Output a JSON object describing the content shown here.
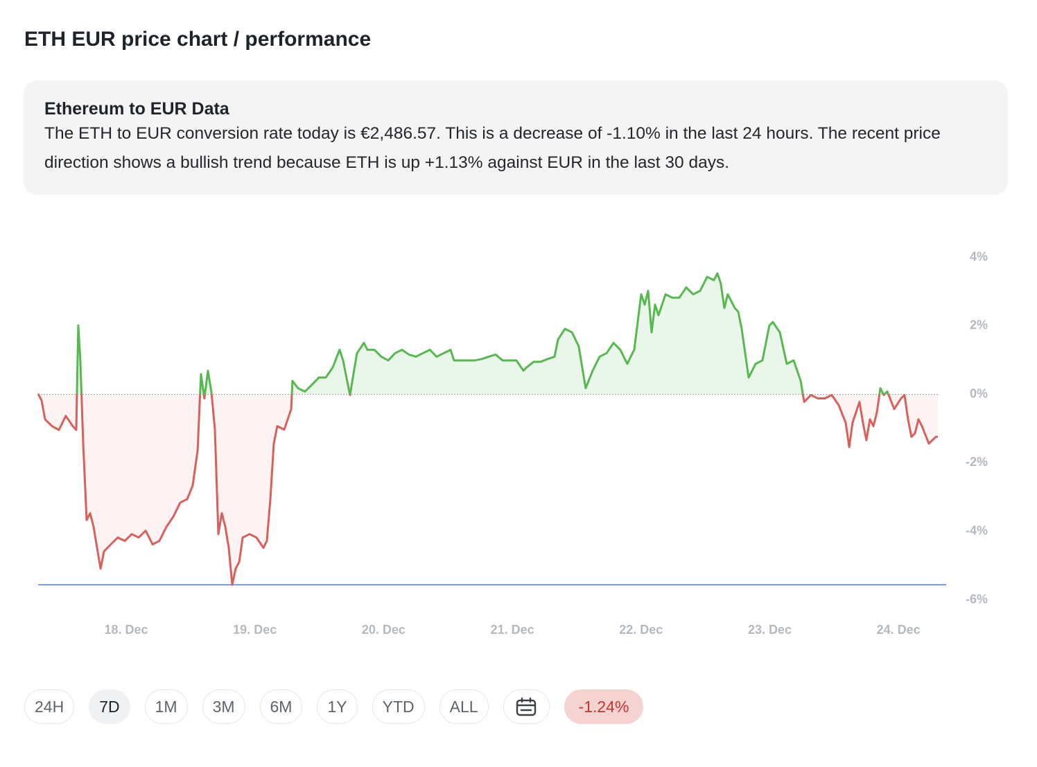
{
  "header": {
    "title": "ETH EUR price chart / performance"
  },
  "info": {
    "heading": "Ethereum to EUR Data",
    "text": "The ETH to EUR conversion rate today is €2,486.57. This is a decrease of -1.10% in the last 24 hours. The recent price direction shows a bullish trend because ETH is up +1.13% against EUR in the last 30 days."
  },
  "chart_data": {
    "type": "line",
    "x": [
      17.316,
      17.343,
      17.37,
      17.397,
      17.424,
      17.478,
      17.531,
      17.585,
      17.612,
      17.628,
      17.644,
      17.666,
      17.693,
      17.72,
      17.747,
      17.774,
      17.801,
      17.828,
      17.881,
      17.935,
      17.989,
      18.043,
      18.097,
      18.151,
      18.205,
      18.258,
      18.312,
      18.366,
      18.42,
      18.474,
      18.517,
      18.555,
      18.581,
      18.608,
      18.635,
      18.662,
      18.689,
      18.716,
      18.743,
      18.77,
      18.797,
      18.824,
      18.851,
      18.878,
      18.905,
      18.959,
      19.012,
      19.066,
      19.093,
      19.12,
      19.147,
      19.174,
      19.228,
      19.282,
      19.292,
      19.335,
      19.389,
      19.443,
      19.497,
      19.551,
      19.605,
      19.658,
      19.685,
      19.712,
      19.739,
      19.766,
      19.793,
      19.847,
      19.874,
      19.928,
      19.982,
      20.036,
      20.089,
      20.143,
      20.197,
      20.251,
      20.305,
      20.359,
      20.412,
      20.466,
      20.52,
      20.547,
      20.601,
      20.655,
      20.709,
      20.763,
      20.816,
      20.87,
      20.924,
      20.978,
      21.032,
      21.086,
      21.112,
      21.166,
      21.22,
      21.274,
      21.328,
      21.355,
      21.409,
      21.463,
      21.516,
      21.57,
      21.624,
      21.678,
      21.732,
      21.786,
      21.839,
      21.893,
      21.947,
      22.001,
      22.028,
      22.055,
      22.082,
      22.109,
      22.136,
      22.163,
      22.19,
      22.243,
      22.297,
      22.351,
      22.405,
      22.459,
      22.513,
      22.566,
      22.593,
      22.62,
      22.647,
      22.674,
      22.728,
      22.755,
      22.782,
      22.836,
      22.89,
      22.943,
      22.97,
      22.997,
      23.024,
      23.078,
      23.132,
      23.186,
      23.24,
      23.267,
      23.32,
      23.374,
      23.428,
      23.482,
      23.536,
      23.59,
      23.617,
      23.643,
      23.697,
      23.724,
      23.751,
      23.778,
      23.805,
      23.832,
      23.859,
      23.886,
      23.913,
      23.967,
      24.02,
      24.047,
      24.074,
      24.101,
      24.128,
      24.155,
      24.182,
      24.236,
      24.29,
      24.306
    ],
    "values": [
      0.02,
      -0.18,
      -0.73,
      -0.83,
      -0.93,
      -1.04,
      -0.63,
      -0.93,
      -1.04,
      2.01,
      0.99,
      -1.44,
      -3.67,
      -3.47,
      -3.87,
      -4.48,
      -5.09,
      -4.58,
      -4.38,
      -4.18,
      -4.28,
      -4.08,
      -4.18,
      -3.98,
      -4.38,
      -4.28,
      -3.87,
      -3.57,
      -3.16,
      -3.06,
      -2.66,
      -1.64,
      0.59,
      -0.12,
      0.69,
      0.08,
      -1.03,
      -4.08,
      -3.47,
      -3.87,
      -4.48,
      -5.56,
      -5.09,
      -4.89,
      -4.18,
      -4.08,
      -4.18,
      -4.48,
      -4.28,
      -3.06,
      -1.44,
      -0.93,
      -1.03,
      -0.43,
      0.39,
      0.18,
      0.08,
      0.28,
      0.49,
      0.49,
      0.79,
      1.3,
      0.99,
      0.49,
      -0.02,
      0.59,
      1.2,
      1.5,
      1.3,
      1.3,
      1.1,
      0.99,
      1.2,
      1.3,
      1.16,
      1.1,
      1.2,
      1.3,
      1.1,
      1.2,
      1.3,
      0.99,
      0.99,
      0.99,
      0.99,
      1.03,
      1.1,
      1.16,
      0.99,
      0.99,
      0.99,
      0.69,
      0.79,
      0.95,
      0.95,
      1.03,
      1.1,
      1.6,
      1.91,
      1.81,
      1.4,
      0.18,
      0.69,
      1.1,
      1.2,
      1.5,
      1.3,
      0.89,
      1.3,
      2.92,
      2.62,
      3.02,
      1.81,
      2.62,
      2.31,
      2.62,
      2.92,
      2.82,
      2.82,
      3.12,
      2.92,
      3.02,
      3.43,
      3.33,
      3.53,
      3.23,
      2.52,
      2.92,
      2.52,
      2.41,
      1.91,
      0.49,
      0.89,
      0.99,
      1.5,
      2.01,
      2.11,
      1.81,
      0.89,
      0.99,
      0.39,
      -0.22,
      -0.02,
      -0.12,
      -0.12,
      -0.02,
      -0.32,
      -0.83,
      -1.54,
      -0.83,
      -0.22,
      -0.83,
      -1.34,
      -0.73,
      -0.93,
      -0.53,
      0.18,
      -0.02,
      0.08,
      -0.43,
      -0.12,
      -0.02,
      -0.73,
      -1.24,
      -1.14,
      -0.73,
      -0.93,
      -1.44,
      -1.24,
      -1.24
    ],
    "colors": {
      "up": "#55b94e",
      "down": "#d9605a",
      "min_line": "#4a7fe0"
    },
    "xlim": [
      17.316,
      24.306
    ],
    "xticks": [
      {
        "value": 18,
        "label": "18. Dec"
      },
      {
        "value": 19,
        "label": "19. Dec"
      },
      {
        "value": 20,
        "label": "20. Dec"
      },
      {
        "value": 21,
        "label": "21. Dec"
      },
      {
        "value": 22,
        "label": "22. Dec"
      },
      {
        "value": 23,
        "label": "23. Dec"
      },
      {
        "value": 24,
        "label": "24. Dec"
      }
    ],
    "ylim": [
      -6,
      4
    ],
    "yticks": [
      {
        "value": 4,
        "label": "4%"
      },
      {
        "value": 2,
        "label": "2%"
      },
      {
        "value": 0,
        "label": "0%"
      },
      {
        "value": -2,
        "label": "-2%"
      },
      {
        "value": -4,
        "label": "-4%"
      },
      {
        "value": -6,
        "label": "-6%"
      }
    ]
  },
  "range_buttons": [
    "24H",
    "7D",
    "1M",
    "3M",
    "6M",
    "1Y",
    "YTD",
    "ALL"
  ],
  "selected_range": 1,
  "change_badge": "-1.24%"
}
